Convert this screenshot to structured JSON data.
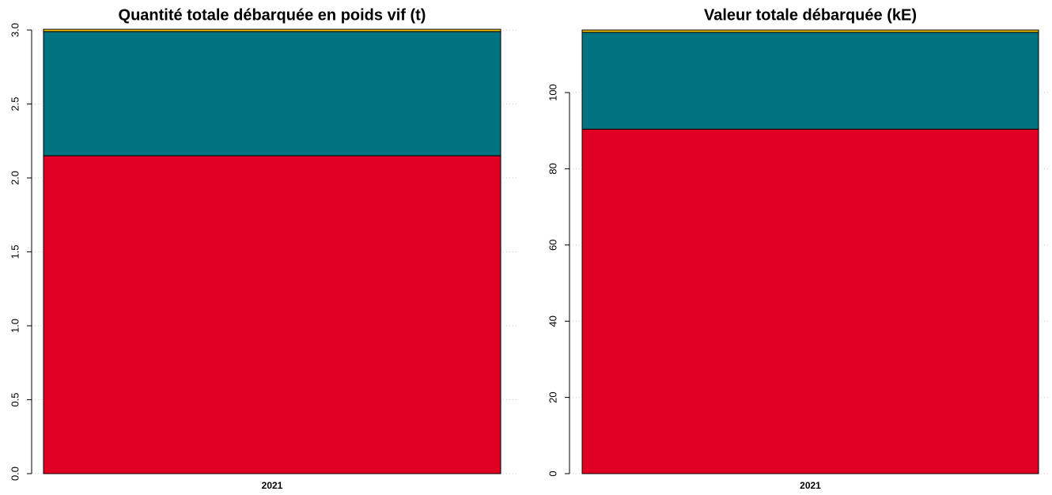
{
  "chart_data": [
    {
      "type": "stacked_bar",
      "title": "Quantité totale débarquée en poids vif (t)",
      "categories": [
        "2021"
      ],
      "series": [
        {
          "color": "#e00024",
          "values": [
            2.15
          ]
        },
        {
          "color": "#007380",
          "values": [
            0.84
          ]
        },
        {
          "color": "#f5c400",
          "values": [
            0.015
          ]
        }
      ],
      "ylim": [
        0,
        3.0
      ],
      "yticks": [
        {
          "value": 0,
          "label": "0.0"
        },
        0.5,
        {
          "value": 1,
          "label": "1.0"
        },
        1.5,
        {
          "value": 2,
          "label": "2.0"
        },
        2.5,
        {
          "value": 3,
          "label": "3.0"
        }
      ],
      "grid": true
    },
    {
      "type": "stacked_bar",
      "title": "Valeur totale débarquée (kE)",
      "categories": [
        "2021"
      ],
      "series": [
        {
          "color": "#e00024",
          "values": [
            90.4
          ]
        },
        {
          "color": "#007380",
          "values": [
            25.4
          ]
        },
        {
          "color": "#f5c400",
          "values": [
            0.6
          ]
        }
      ],
      "ylim": [
        0,
        116.4
      ],
      "yticks": [
        0,
        20,
        40,
        60,
        80,
        100
      ],
      "grid": true
    }
  ]
}
